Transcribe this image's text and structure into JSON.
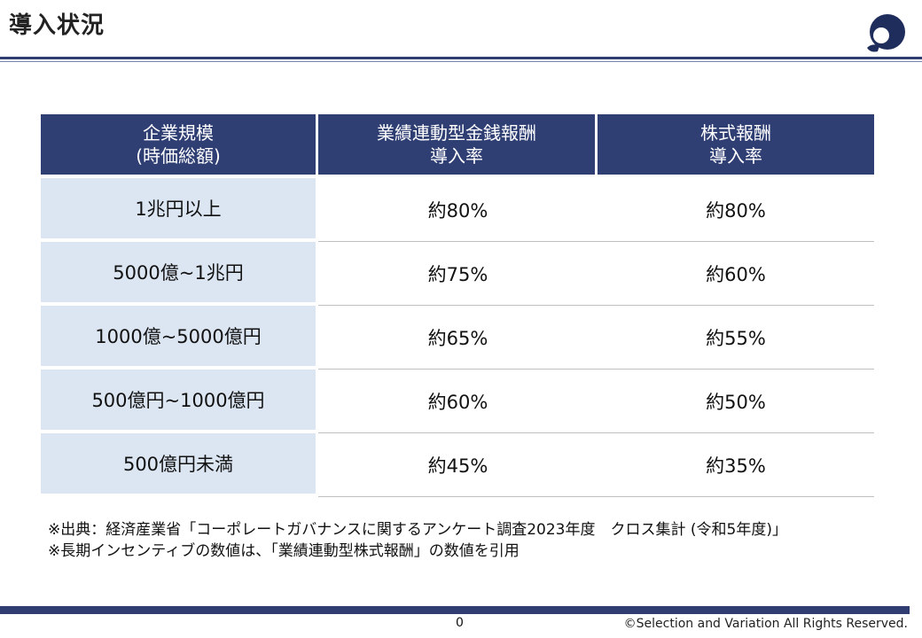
{
  "slide": {
    "title": "導入状況",
    "page_number": "0",
    "copyright": "©Selection and Variation All Rights Reserved."
  },
  "table": {
    "headers": [
      [
        "企業規模",
        "(時価総額)"
      ],
      [
        "業績連動型金銭報酬",
        "導入率"
      ],
      [
        "株式報酬",
        "導入率"
      ]
    ],
    "rows": [
      {
        "label": "1兆円以上",
        "cash": "約80%",
        "stock": "約80%"
      },
      {
        "label": "5000億~1兆円",
        "cash": "約75%",
        "stock": "約60%"
      },
      {
        "label": "1000億~5000億円",
        "cash": "約65%",
        "stock": "約55%"
      },
      {
        "label": "500億円~1000億円",
        "cash": "約60%",
        "stock": "約50%"
      },
      {
        "label": "500億円未満",
        "cash": "約45%",
        "stock": "約35%"
      }
    ]
  },
  "notes": [
    "※出典：経済産業省「コーポレートガバナンスに関するアンケート調査2023年度　クロス集計 (令和5年度)」",
    "※長期インセンティブの数値は、「業績連動型株式報酬」の数値を引用"
  ],
  "colors": {
    "header_bg": "#2f3e73",
    "label_bg": "#dce6f3",
    "accent": "#2f3d72"
  },
  "logo_icon": "brand-logo-icon"
}
